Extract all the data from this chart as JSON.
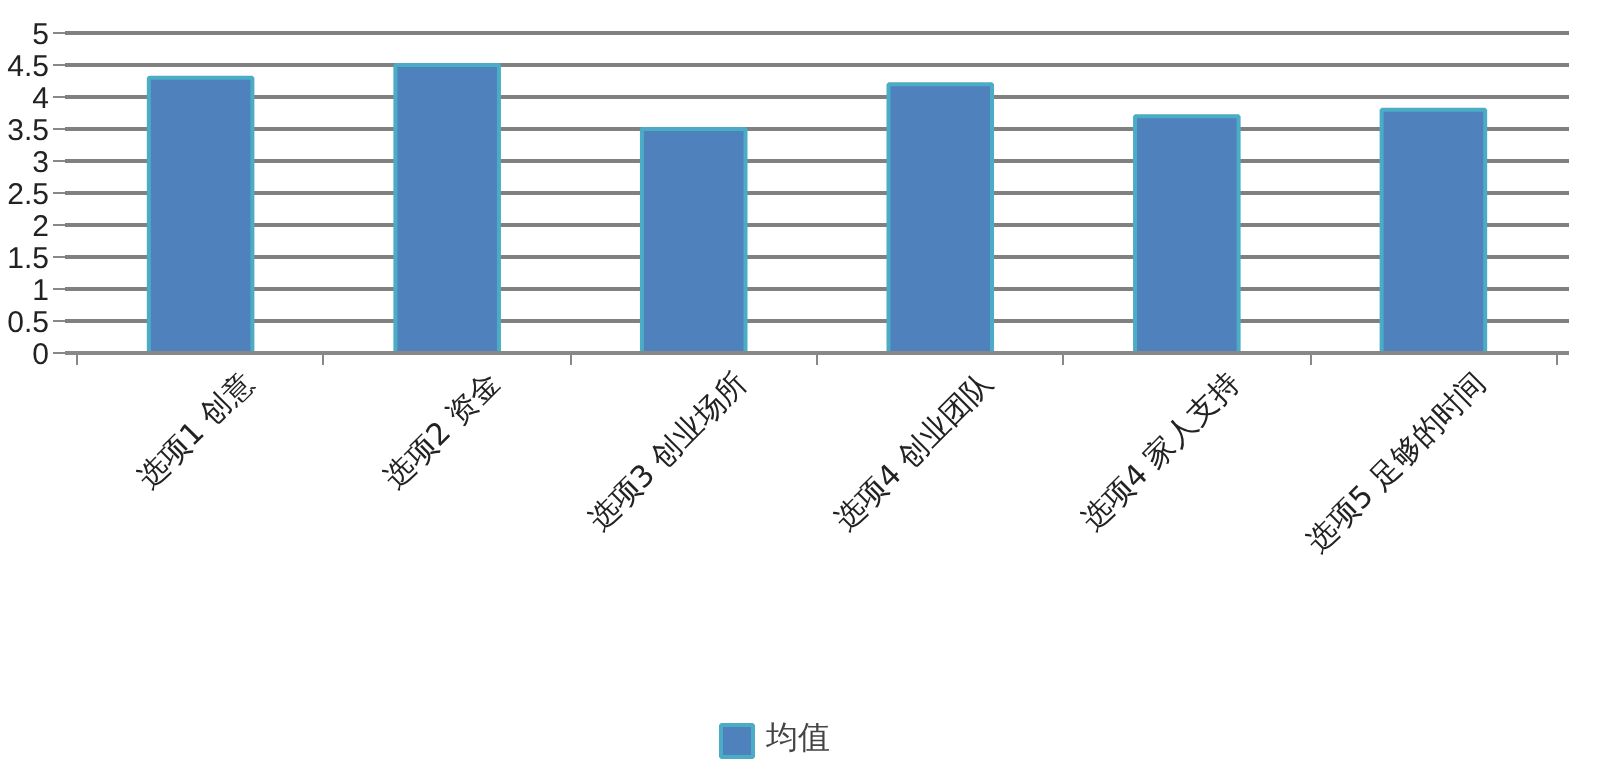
{
  "chart_data": {
    "type": "bar",
    "categories": [
      "选项1 创意",
      "选项2 资金",
      "选项3 创业场所",
      "选项4 创业团队",
      "选项4 家人支持",
      "选项5 足够的时间"
    ],
    "series": [
      {
        "name": "均值",
        "color": "#4f81bd",
        "values": [
          4.3,
          4.5,
          3.5,
          4.2,
          3.7,
          3.8
        ]
      }
    ],
    "ylim": [
      0,
      5
    ],
    "yticks": [
      0,
      0.5,
      1,
      1.5,
      2,
      2.5,
      3,
      3.5,
      4,
      4.5,
      5
    ],
    "grid": "y",
    "legend": "bottom"
  }
}
